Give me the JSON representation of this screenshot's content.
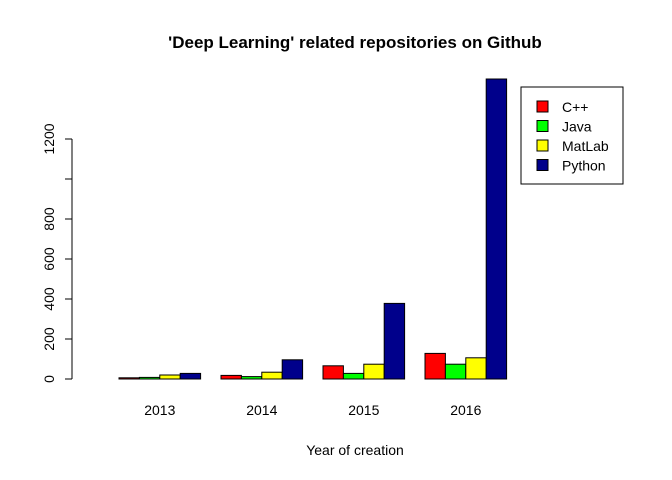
{
  "chart_data": {
    "type": "bar",
    "title": "'Deep Learning' related repositories on Github",
    "xlabel": "Year of creation",
    "ylabel": "",
    "categories": [
      "2013",
      "2014",
      "2015",
      "2016"
    ],
    "series": [
      {
        "name": "C++",
        "color": "#ff0000",
        "values": [
          6,
          18,
          66,
          128
        ]
      },
      {
        "name": "Java",
        "color": "#00ff00",
        "values": [
          8,
          12,
          28,
          74
        ]
      },
      {
        "name": "MatLab",
        "color": "#ffff00",
        "values": [
          20,
          34,
          74,
          106
        ]
      },
      {
        "name": "Python",
        "color": "#00008b",
        "values": [
          28,
          96,
          378,
          1500
        ]
      }
    ],
    "yticks": [
      0,
      200,
      400,
      600,
      800,
      1000,
      1200
    ],
    "yticks_labeled": [
      "0",
      "200",
      "400",
      "600",
      "800",
      "",
      "1200"
    ],
    "ylim": [
      0,
      1500
    ],
    "grid": false,
    "legend_position": "top-right"
  }
}
